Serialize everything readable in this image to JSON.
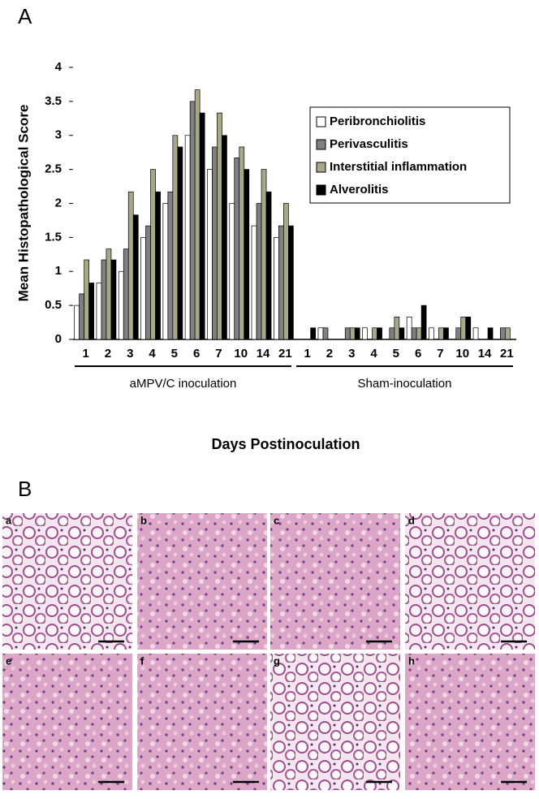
{
  "panel_labels": [
    "A",
    "B"
  ],
  "chart_data": {
    "type": "bar",
    "y_label": "Mean Histopathological Score",
    "x_label": "Days Postinoculation",
    "categories": [
      "1",
      "2",
      "3",
      "4",
      "5",
      "6",
      "7",
      "10",
      "14",
      "21",
      "1",
      "2",
      "3",
      "4",
      "5",
      "6",
      "7",
      "10",
      "14",
      "21"
    ],
    "group_labels": [
      "aMPV/C inoculation",
      "Sham-inoculation"
    ],
    "ylim": [
      0,
      4
    ],
    "yticks": [
      0,
      0.5,
      1,
      1.5,
      2,
      2.5,
      3,
      3.5,
      4
    ],
    "legend": "upper right",
    "series": [
      {
        "name": "Peribronchiolitis",
        "color": "#ffffff",
        "values": [
          0.5,
          0.83,
          1.0,
          1.5,
          2.0,
          3.0,
          2.5,
          2.0,
          1.67,
          1.5,
          0,
          0.17,
          0,
          0.17,
          0,
          0.33,
          0.17,
          0,
          0.17,
          0
        ]
      },
      {
        "name": "Perivasculitis",
        "color": "#808080",
        "values": [
          0.67,
          1.17,
          1.33,
          1.67,
          2.17,
          3.5,
          2.83,
          2.67,
          2.0,
          1.67,
          0,
          0.17,
          0.17,
          0,
          0.17,
          0.17,
          0,
          0.17,
          0,
          0.17
        ]
      },
      {
        "name": "Interstitial inflammation",
        "color": "#a8a888",
        "values": [
          1.17,
          1.33,
          2.17,
          2.5,
          3.0,
          3.67,
          3.33,
          2.83,
          2.5,
          2.0,
          0,
          0,
          0.17,
          0.17,
          0.33,
          0.17,
          0.17,
          0.33,
          0,
          0.17
        ]
      },
      {
        "name": "Alverolitis",
        "color": "#000000",
        "values": [
          0.83,
          1.17,
          1.83,
          2.17,
          2.83,
          3.33,
          3.0,
          2.5,
          2.17,
          1.67,
          0.17,
          0,
          0.17,
          0.17,
          0.17,
          0.5,
          0.17,
          0.33,
          0.17,
          0
        ]
      }
    ]
  },
  "micrographs": [
    "a",
    "b",
    "c",
    "d",
    "e",
    "f",
    "g",
    "h"
  ]
}
